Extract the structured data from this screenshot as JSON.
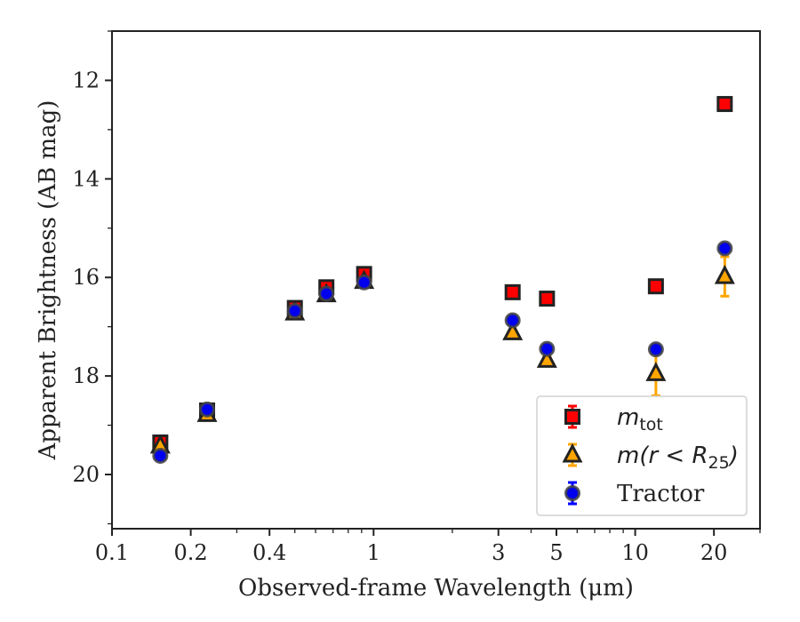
{
  "chart_data": {
    "type": "scatter",
    "title": "",
    "xlabel": "Observed-frame Wavelength (μm)",
    "ylabel": "Apparent Brightness (AB mag)",
    "xscale": "log",
    "xlim": [
      0.1,
      30
    ],
    "ylim": [
      21.1,
      11.0
    ],
    "y_inverted": true,
    "grid": false,
    "legend_placement": "lower-right",
    "x_ticks": [
      0.1,
      0.2,
      0.4,
      1,
      3,
      5,
      10,
      20
    ],
    "x_tick_labels": [
      "0.1",
      "0.2",
      "0.4",
      "1",
      "3",
      "5",
      "10",
      "20"
    ],
    "y_ticks": [
      12,
      14,
      16,
      18,
      20
    ],
    "y_tick_labels": [
      "12",
      "14",
      "16",
      "18",
      "20"
    ],
    "series": [
      {
        "name": "m_tot",
        "legend_label": {
          "base": "m",
          "subscript": "tot"
        },
        "marker": "square",
        "face_color": "#ff0000",
        "edge_color": "#222222",
        "error_color": "#ff0000",
        "points": [
          {
            "x": 0.153,
            "y": 19.35,
            "err": 0.05
          },
          {
            "x": 0.231,
            "y": 18.7,
            "err": 0.04
          },
          {
            "x": 0.5,
            "y": 16.62,
            "err": 0.03
          },
          {
            "x": 0.66,
            "y": 16.2,
            "err": 0.03
          },
          {
            "x": 0.92,
            "y": 15.93,
            "err": 0.03
          },
          {
            "x": 3.4,
            "y": 16.3,
            "err": 0.03
          },
          {
            "x": 4.6,
            "y": 16.43,
            "err": 0.03
          },
          {
            "x": 12.0,
            "y": 16.18,
            "err": 0.03
          },
          {
            "x": 22.0,
            "y": 12.48,
            "err": 0.03
          }
        ]
      },
      {
        "name": "m(r < R_25)",
        "legend_label": {
          "base": "m(r < R",
          "subscript": "25",
          "suffix": ")"
        },
        "marker": "triangle",
        "face_color": "#ffa500",
        "edge_color": "#222222",
        "error_color": "#ffa500",
        "points": [
          {
            "x": 0.153,
            "y": 19.42,
            "err": 0.05
          },
          {
            "x": 0.231,
            "y": 18.78,
            "err": 0.04
          },
          {
            "x": 0.5,
            "y": 16.72,
            "err": 0.03
          },
          {
            "x": 0.66,
            "y": 16.35,
            "err": 0.03
          },
          {
            "x": 0.92,
            "y": 16.08,
            "err": 0.03
          },
          {
            "x": 3.4,
            "y": 17.12,
            "err": 0.05
          },
          {
            "x": 4.6,
            "y": 17.68,
            "err": 0.08
          },
          {
            "x": 12.0,
            "y": 17.95,
            "err": 0.45
          },
          {
            "x": 22.0,
            "y": 15.98,
            "err": 0.4
          }
        ]
      },
      {
        "name": "Tractor",
        "legend_label": {
          "base": "Tractor"
        },
        "marker": "circle",
        "face_color": "#0000ee",
        "edge_color": "#444444",
        "error_color": "#0000ff",
        "points": [
          {
            "x": 0.153,
            "y": 19.62,
            "err": 0.05
          },
          {
            "x": 0.231,
            "y": 18.68,
            "err": 0.04
          },
          {
            "x": 0.5,
            "y": 16.68,
            "err": 0.03
          },
          {
            "x": 0.66,
            "y": 16.33,
            "err": 0.03
          },
          {
            "x": 0.92,
            "y": 16.1,
            "err": 0.03
          },
          {
            "x": 3.4,
            "y": 16.87,
            "err": 0.03
          },
          {
            "x": 4.6,
            "y": 17.45,
            "err": 0.05
          },
          {
            "x": 12.0,
            "y": 17.46,
            "err": 0.06
          },
          {
            "x": 22.0,
            "y": 15.41,
            "err": 0.06
          }
        ]
      }
    ]
  }
}
